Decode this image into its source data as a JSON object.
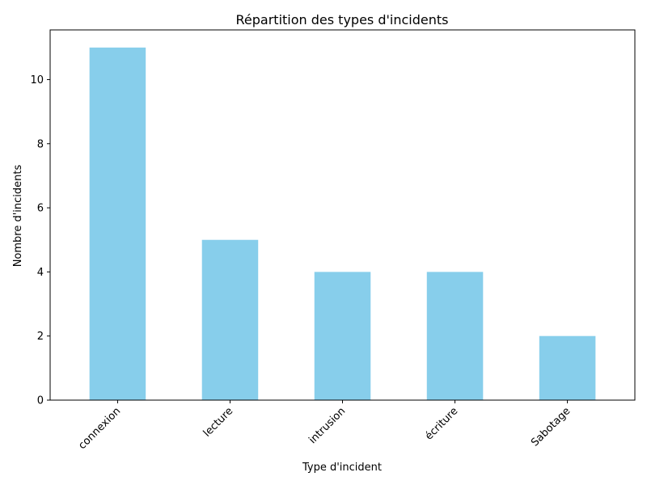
{
  "chart_data": {
    "type": "bar",
    "title": "Répartition des types d'incidents",
    "xlabel": "Type d'incident",
    "ylabel": "Nombre d'incidents",
    "categories": [
      "connexion",
      "lecture",
      "intrusion",
      "écriture",
      "Sabotage"
    ],
    "values": [
      11,
      5,
      4,
      4,
      2
    ],
    "ylim": [
      0,
      11.55
    ],
    "yticks": [
      0,
      2,
      4,
      6,
      8,
      10
    ],
    "bar_color": "#87ceeb",
    "grid": false,
    "legend": "none"
  }
}
